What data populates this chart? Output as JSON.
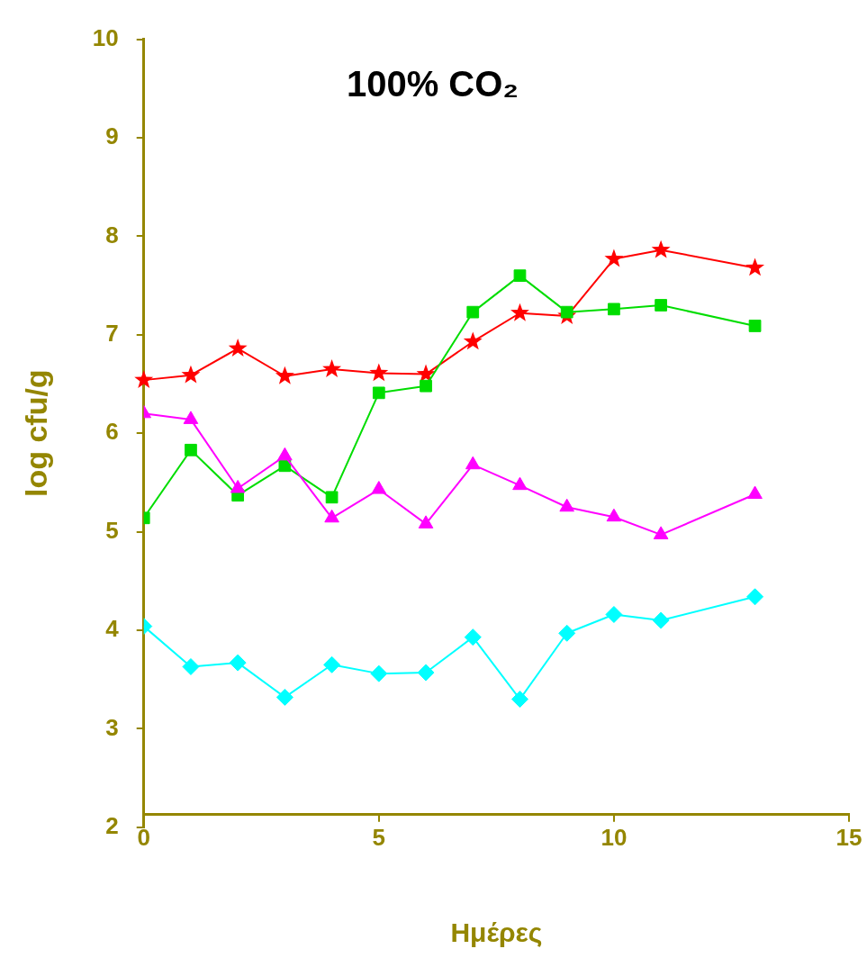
{
  "chart_data": {
    "type": "line",
    "title": "100% CO₂",
    "xlabel": "Ημέρες",
    "ylabel": "log cfu/g",
    "x": [
      0,
      1,
      2,
      3,
      4,
      5,
      6,
      7,
      8,
      9,
      10,
      11,
      13
    ],
    "series": [
      {
        "color": "#ff0000",
        "marker": "star",
        "values": [
          6.54,
          6.59,
          6.86,
          6.58,
          6.65,
          6.61,
          6.6,
          6.93,
          7.22,
          7.19,
          7.77,
          7.86,
          7.68
        ]
      },
      {
        "color": "#00dd00",
        "marker": "square",
        "values": [
          5.14,
          5.83,
          5.37,
          5.67,
          5.35,
          6.41,
          6.48,
          7.23,
          7.6,
          7.23,
          7.26,
          7.3,
          7.09
        ]
      },
      {
        "color": "#ff00ff",
        "marker": "triangle",
        "values": [
          6.2,
          6.14,
          5.44,
          5.77,
          5.14,
          5.43,
          5.08,
          5.68,
          5.47,
          5.25,
          5.15,
          4.97,
          5.38
        ]
      },
      {
        "color": "#00ffff",
        "marker": "diamond",
        "values": [
          4.04,
          3.63,
          3.67,
          3.32,
          3.65,
          3.56,
          3.57,
          3.93,
          3.3,
          3.97,
          4.16,
          4.1,
          4.34
        ]
      }
    ],
    "xlim": [
      0,
      15
    ],
    "xticks": [
      0,
      5,
      10,
      15
    ],
    "ylim": [
      2,
      10
    ],
    "yticks": [
      2,
      3,
      4,
      5,
      6,
      7,
      8,
      9,
      10
    ],
    "grid": false,
    "legend": false,
    "line_style": "solid"
  }
}
